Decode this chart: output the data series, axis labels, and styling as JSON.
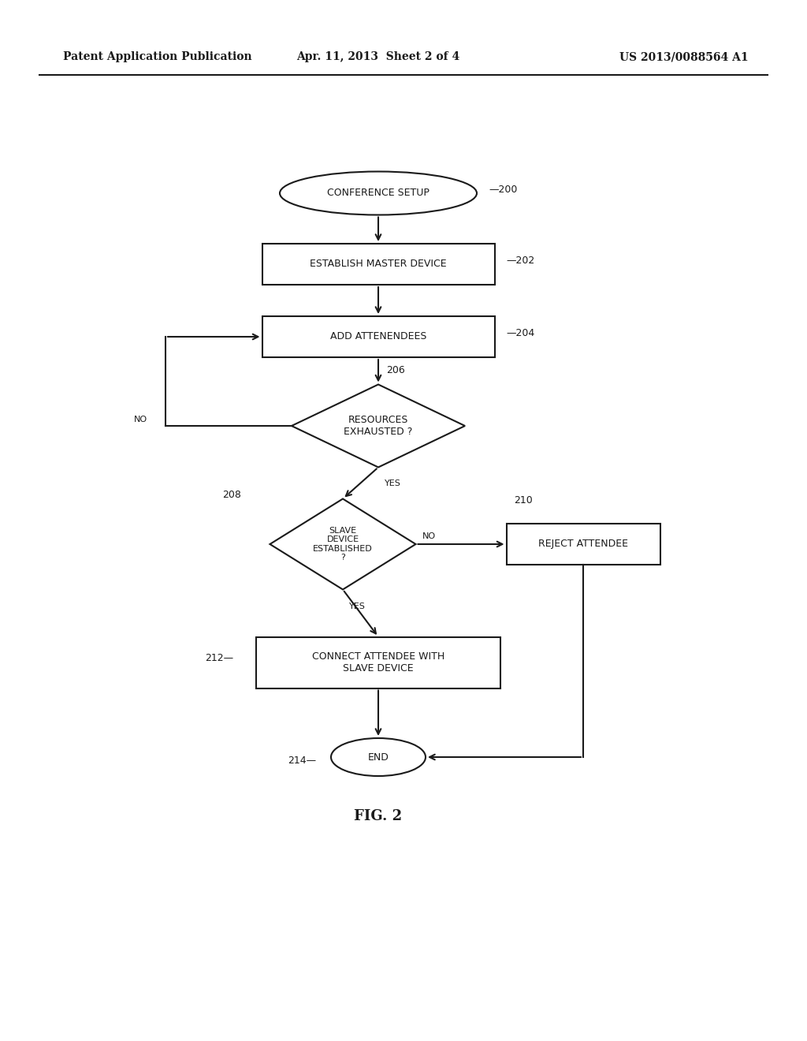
{
  "background_color": "#ffffff",
  "header_left": "Patent Application Publication",
  "header_center": "Apr. 11, 2013  Sheet 2 of 4",
  "header_right": "US 2013/0088564 A1",
  "fig_label": "FIG. 2",
  "text_color": "#1a1a1a",
  "arrow_color": "#1a1a1a",
  "line_width": 1.5,
  "font_size_node": 9,
  "font_size_ref": 9,
  "font_size_label": 8,
  "font_size_header": 10,
  "font_size_fig": 13
}
